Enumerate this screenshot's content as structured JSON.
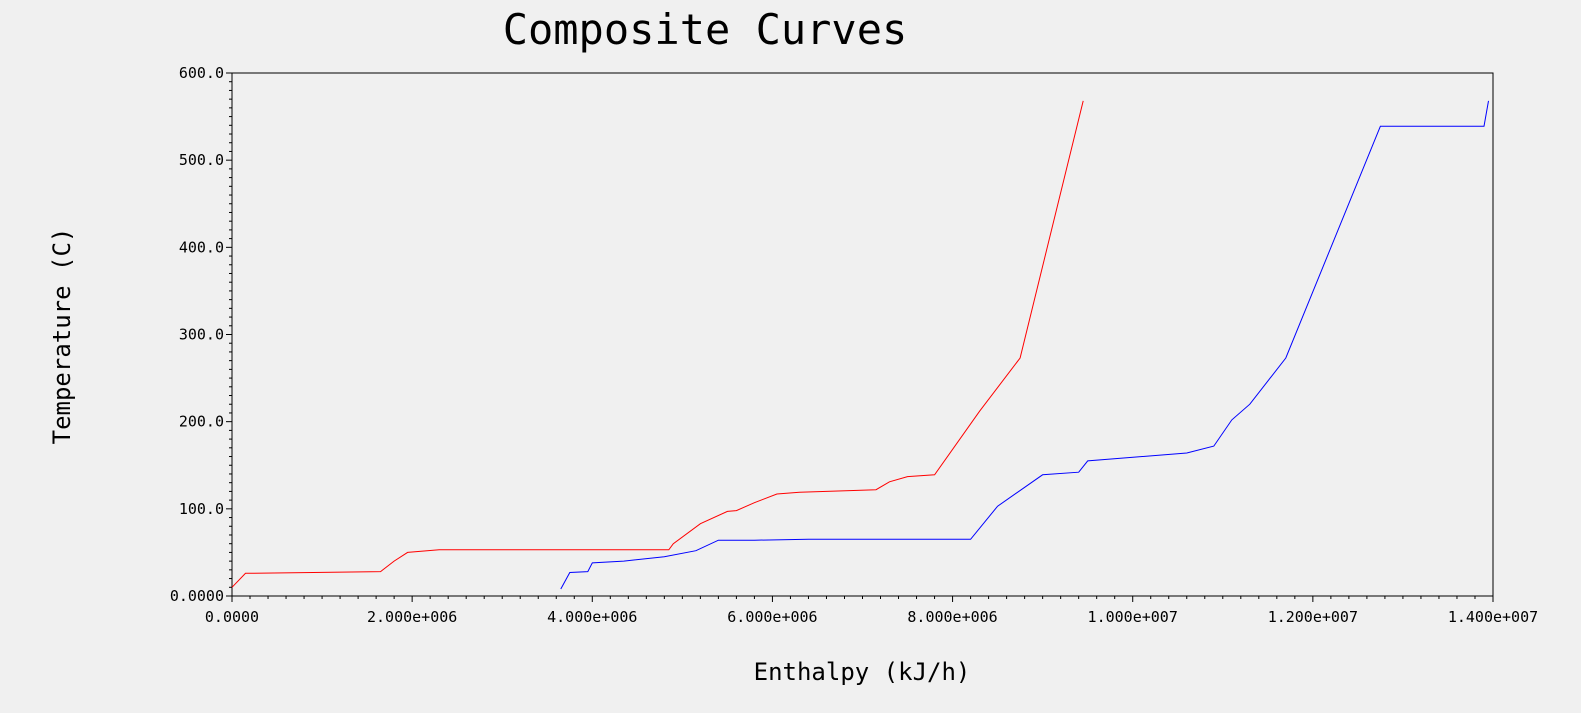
{
  "chart_data": {
    "type": "line",
    "title": "Composite Curves",
    "xlabel": "Enthalpy (kJ/h)",
    "ylabel": "Temperature (C)",
    "xlim": [
      0,
      14000000
    ],
    "ylim": [
      0,
      600
    ],
    "grid": false,
    "x_tick_labels": [
      "0.0000",
      "2.000e+006",
      "4.000e+006",
      "6.000e+006",
      "8.000e+006",
      "1.000e+007",
      "1.200e+007",
      "1.400e+007"
    ],
    "x_tick_values": [
      0,
      2000000,
      4000000,
      6000000,
      8000000,
      10000000,
      12000000,
      14000000
    ],
    "y_tick_labels": [
      "0.0000",
      "100.0",
      "200.0",
      "300.0",
      "400.0",
      "500.0",
      "600.0"
    ],
    "y_tick_values": [
      0,
      100,
      200,
      300,
      400,
      500,
      600
    ],
    "series": [
      {
        "color": "#ff0000",
        "points": [
          [
            0,
            10
          ],
          [
            150000,
            26
          ],
          [
            900000,
            27
          ],
          [
            1650000,
            28
          ],
          [
            1800000,
            40
          ],
          [
            1950000,
            50
          ],
          [
            2300000,
            53
          ],
          [
            4850000,
            53
          ],
          [
            4900000,
            60
          ],
          [
            5200000,
            83
          ],
          [
            5500000,
            97
          ],
          [
            5600000,
            98
          ],
          [
            5800000,
            107
          ],
          [
            6050000,
            117
          ],
          [
            6300000,
            119
          ],
          [
            6600000,
            120
          ],
          [
            6900000,
            121
          ],
          [
            7150000,
            122
          ],
          [
            7300000,
            131
          ],
          [
            7500000,
            137
          ],
          [
            7800000,
            139
          ],
          [
            8300000,
            212
          ],
          [
            8750000,
            273
          ],
          [
            9450000,
            568
          ]
        ]
      },
      {
        "color": "#0000ff",
        "points": [
          [
            3650000,
            8
          ],
          [
            3750000,
            27
          ],
          [
            3950000,
            28
          ],
          [
            4000000,
            38
          ],
          [
            4350000,
            40
          ],
          [
            4800000,
            45
          ],
          [
            5150000,
            52
          ],
          [
            5400000,
            64
          ],
          [
            5800000,
            64
          ],
          [
            6400000,
            65
          ],
          [
            8200000,
            65
          ],
          [
            8500000,
            103
          ],
          [
            9000000,
            139
          ],
          [
            9400000,
            142
          ],
          [
            9500000,
            155
          ],
          [
            10600000,
            164
          ],
          [
            10900000,
            172
          ],
          [
            11100000,
            202
          ],
          [
            11300000,
            220
          ],
          [
            11700000,
            273
          ],
          [
            12750000,
            539
          ],
          [
            13900000,
            539
          ],
          [
            13950000,
            568
          ]
        ]
      }
    ]
  }
}
